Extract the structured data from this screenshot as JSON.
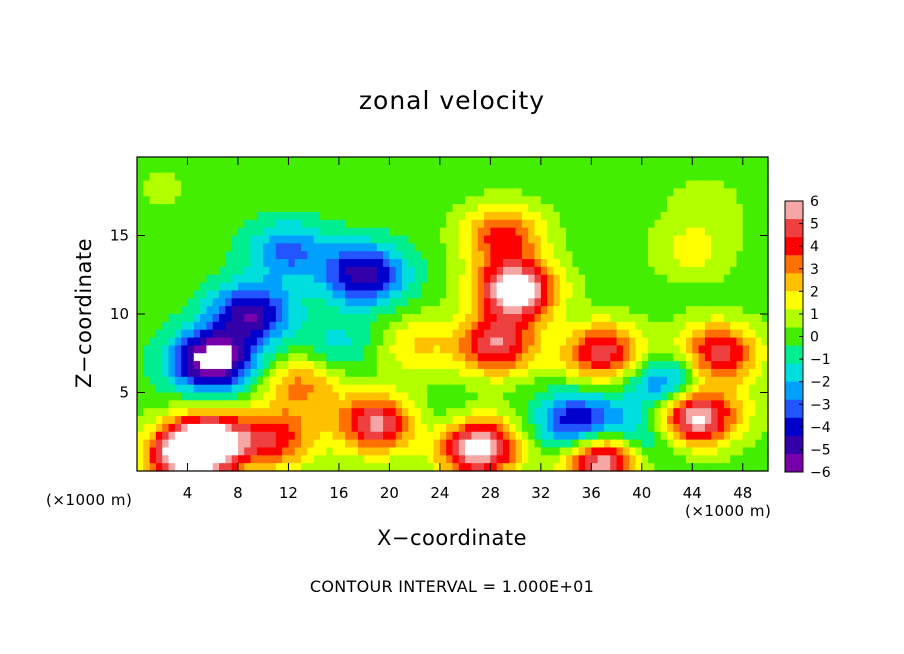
{
  "chart_data": {
    "type": "heatmap",
    "title": "zonal velocity",
    "xlabel": "X−coordinate",
    "ylabel": "Z−coordinate",
    "x_unit_label_left": "(×1000 m)",
    "x_unit_label_right": "(×1000 m)",
    "footer": "CONTOUR INTERVAL = 1.000E+01",
    "xlim": [
      0,
      50
    ],
    "ylim": [
      0,
      20
    ],
    "x_ticks": [
      4,
      8,
      12,
      16,
      20,
      24,
      28,
      32,
      36,
      40,
      44,
      48
    ],
    "y_ticks": [
      5,
      10,
      15
    ],
    "colorbar": {
      "ticks": [
        "6",
        "5",
        "4",
        "3",
        "2",
        "1",
        "0",
        "−1",
        "−2",
        "−3",
        "−4",
        "−5",
        "−6"
      ],
      "range": [
        -6,
        6
      ],
      "colors": [
        "#f7a6a6",
        "#ee4040",
        "#ff0000",
        "#ff7000",
        "#ffc000",
        "#ffff00",
        "#b2ff00",
        "#44ee00",
        "#00ee90",
        "#00dddd",
        "#00a0ff",
        "#2255ff",
        "#0000cc",
        "#3300aa",
        "#7700aa"
      ],
      "over_color": "#ffffff"
    },
    "features": [
      {
        "x": 30,
        "z": 11.5,
        "value": 7
      },
      {
        "x": 28.5,
        "z": 8,
        "value": 5
      },
      {
        "x": 29,
        "z": 15,
        "value": 4
      },
      {
        "x": 22,
        "z": 8,
        "value": 2
      },
      {
        "x": 44,
        "z": 14,
        "value": 1.5
      },
      {
        "x": 45,
        "z": 17,
        "value": 0.8
      },
      {
        "x": 2,
        "z": 18,
        "value": 0.5
      },
      {
        "x": 48,
        "z": 4,
        "value": 0.5
      },
      {
        "x": 12,
        "z": 14,
        "value": -3
      },
      {
        "x": 18,
        "z": 12.5,
        "value": -5
      },
      {
        "x": 9,
        "z": 10,
        "value": -5
      },
      {
        "x": 6,
        "z": 7,
        "value": -7
      },
      {
        "x": 13,
        "z": 5.5,
        "value": 3
      },
      {
        "x": 19,
        "z": 3,
        "value": 5.5
      },
      {
        "x": 11,
        "z": 2,
        "value": 4
      },
      {
        "x": 6,
        "z": 2,
        "value": 5
      },
      {
        "x": 4,
        "z": 1,
        "value": 7
      },
      {
        "x": 27,
        "z": 1.5,
        "value": 7
      },
      {
        "x": 37,
        "z": 0.8,
        "value": 7
      },
      {
        "x": 35,
        "z": 3,
        "value": -5
      },
      {
        "x": 44,
        "z": 3.5,
        "value": 7
      },
      {
        "x": 46,
        "z": 7.5,
        "value": 5
      },
      {
        "x": 37,
        "z": 7.5,
        "value": 5
      },
      {
        "x": 42,
        "z": 5.5,
        "value": -4
      },
      {
        "x": 40,
        "z": 2,
        "value": -3
      },
      {
        "x": 24,
        "z": 3,
        "value": -1
      },
      {
        "x": 16,
        "z": 8,
        "value": -1.5
      }
    ]
  }
}
